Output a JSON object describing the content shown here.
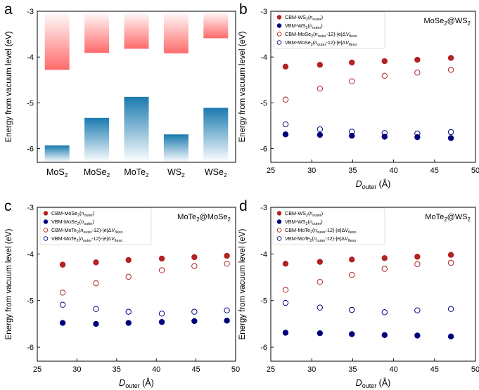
{
  "chart_data": [
    {
      "id": "a",
      "panel_label": "a",
      "type": "bar",
      "ylabel": "Energy from vacuum level (eV)",
      "ylim": [
        -6.3,
        -3
      ],
      "yticks": [
        "-3",
        "-4",
        "-5",
        "-6"
      ],
      "categories": [
        {
          "base": "MoS",
          "sub": "2"
        },
        {
          "base": "MoSe",
          "sub": "2"
        },
        {
          "base": "MoTe",
          "sub": "2"
        },
        {
          "base": "WS",
          "sub": "2"
        },
        {
          "base": "WSe",
          "sub": "2"
        }
      ],
      "cbm_values": [
        -4.28,
        -3.91,
        -3.82,
        -3.92,
        -3.59
      ],
      "vbm_values": [
        -5.93,
        -5.33,
        -4.87,
        -5.69,
        -5.11
      ],
      "colors": {
        "cbm": "#ff6b6b",
        "vbm": "#1a7ab0"
      }
    },
    {
      "id": "b",
      "panel_label": "b",
      "type": "scatter",
      "annotation": "MoSe₂@WS₂",
      "xlabel": "D",
      "xlabel_sub": "outer",
      "xlabel_unit": " (Å)",
      "ylabel": "Energy from vacuum level (eV)",
      "xlim": [
        25,
        50
      ],
      "ylim": [
        -6.3,
        -3
      ],
      "xticks": [
        "25",
        "30",
        "35",
        "40",
        "45",
        "50"
      ],
      "yticks": [
        "-3",
        "-4",
        "-5",
        "-6"
      ],
      "legend": [
        "CBM-WS₂(n_outer)",
        "VBM-WS₂(n_outer)",
        "CBM-MoSe₂(n_outer-12)-|e|ΔV_flexo",
        "VBM-MoSe₂(n_outer-12)-|e|ΔV_flexo"
      ],
      "x": [
        26.8,
        31.0,
        34.9,
        38.9,
        42.9,
        47.0
      ],
      "series": [
        {
          "name": "CBM-WS2 (n_outer)",
          "filled": true,
          "color": "#b22222",
          "values": [
            -4.21,
            -4.17,
            -4.12,
            -4.09,
            -4.06,
            -4.02
          ]
        },
        {
          "name": "VBM-WS2 (n_outer)",
          "filled": true,
          "color": "#00007f",
          "values": [
            -5.69,
            -5.7,
            -5.72,
            -5.74,
            -5.75,
            -5.77
          ]
        },
        {
          "name": "CBM-MoSe2 (n_outer-12)-|e|ΔV_flexo",
          "filled": false,
          "color": "#b22222",
          "values": [
            -4.93,
            -4.69,
            -4.53,
            -4.41,
            -4.34,
            -4.28
          ]
        },
        {
          "name": "VBM-MoSe2 (n_outer-12)-|e|ΔV_flexo",
          "filled": false,
          "color": "#00007f",
          "values": [
            -5.47,
            -5.58,
            -5.63,
            -5.66,
            -5.67,
            -5.64
          ]
        }
      ]
    },
    {
      "id": "c",
      "panel_label": "c",
      "type": "scatter",
      "annotation": "MoTe₂@MoSe₂",
      "xlabel": "D",
      "xlabel_sub": "outer",
      "xlabel_unit": " (Å)",
      "ylabel": "Energy from vacuum level (eV)",
      "xlim": [
        25,
        50
      ],
      "ylim": [
        -6.3,
        -3
      ],
      "xticks": [
        "25",
        "30",
        "35",
        "40",
        "45",
        "50"
      ],
      "yticks": [
        "-3",
        "-4",
        "-5",
        "-6"
      ],
      "legend": [
        "CBM-MoSe₂(n_outer)",
        "VBM-MoSe₂(n_outer)",
        "CBM-MoTe₂(n_outer-12)-|e|ΔV_flexo",
        "VBM-MoTe₂(n_outer-12)-|e|ΔV_flexo"
      ],
      "x": [
        28.2,
        32.4,
        36.5,
        40.7,
        44.8,
        48.9
      ],
      "series": [
        {
          "name": "CBM-MoSe2 (n_outer)",
          "filled": true,
          "color": "#b22222",
          "values": [
            -4.23,
            -4.18,
            -4.13,
            -4.1,
            -4.07,
            -4.04
          ]
        },
        {
          "name": "VBM-MoSe2 (n_outer)",
          "filled": true,
          "color": "#00007f",
          "values": [
            -5.48,
            -5.5,
            -5.48,
            -5.46,
            -5.44,
            -5.43
          ]
        },
        {
          "name": "CBM-MoTe2 (n_outer-12)-|e|ΔV_flexo",
          "filled": false,
          "color": "#b22222",
          "values": [
            -4.83,
            -4.63,
            -4.49,
            -4.35,
            -4.26,
            -4.21
          ]
        },
        {
          "name": "VBM-MoTe2 (n_outer-12)-|e|ΔV_flexo",
          "filled": false,
          "color": "#00007f",
          "values": [
            -5.09,
            -5.18,
            -5.24,
            -5.28,
            -5.24,
            -5.21
          ]
        }
      ]
    },
    {
      "id": "d",
      "panel_label": "d",
      "type": "scatter",
      "annotation": "MoTe₂@WS₂",
      "xlabel": "D",
      "xlabel_sub": "outer",
      "xlabel_unit": " (Å)",
      "ylabel": "Energy from vacuum level (eV)",
      "xlim": [
        25,
        50
      ],
      "ylim": [
        -6.3,
        -3
      ],
      "xticks": [
        "25",
        "30",
        "35",
        "40",
        "45",
        "50"
      ],
      "yticks": [
        "-3",
        "-4",
        "-5",
        "-6"
      ],
      "legend": [
        "CBM-WS₂(n_outer)",
        "VBM-WS₂(n_outer)",
        "CBM-MoTe₂(n_outer-12)-|e|ΔV_flexo",
        "VBM-MoTe₂(n_outer-12)-|e|ΔV_flexo"
      ],
      "x": [
        26.8,
        31.0,
        34.9,
        38.9,
        42.9,
        47.0
      ],
      "series": [
        {
          "name": "CBM-WS2 (n_outer)",
          "filled": true,
          "color": "#b22222",
          "values": [
            -4.21,
            -4.17,
            -4.12,
            -4.09,
            -4.06,
            -4.02
          ]
        },
        {
          "name": "VBM-WS2 (n_outer)",
          "filled": true,
          "color": "#00007f",
          "values": [
            -5.69,
            -5.7,
            -5.72,
            -5.74,
            -5.75,
            -5.77
          ]
        },
        {
          "name": "CBM-MoTe2 (n_outer-12)-|e|ΔV_flexo",
          "filled": false,
          "color": "#b22222",
          "values": [
            -4.77,
            -4.6,
            -4.45,
            -4.32,
            -4.22,
            -4.19
          ]
        },
        {
          "name": "VBM-MoTe2 (n_outer-12)-|e|ΔV_flexo",
          "filled": false,
          "color": "#00007f",
          "values": [
            -5.05,
            -5.15,
            -5.2,
            -5.25,
            -5.21,
            -5.18
          ]
        }
      ]
    }
  ]
}
